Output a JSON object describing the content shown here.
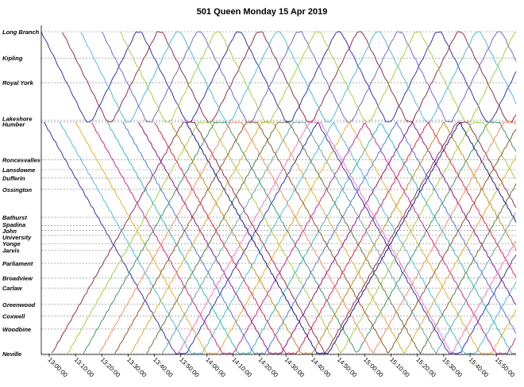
{
  "chart_data": {
    "type": "line",
    "title": "501 Queen Monday 15 Apr 2019",
    "xlabel": "",
    "ylabel": "",
    "x_ticks": [
      "13:00:00",
      "13:10:00",
      "13:20:00",
      "13:30:00",
      "13:40:00",
      "13:50:00",
      "14:00:00",
      "14:10:00",
      "14:20:00",
      "14:30:00",
      "14:40:00",
      "14:50:00",
      "15:00:00",
      "15:10:00",
      "15:20:00",
      "15:30:00",
      "15:40:00",
      "15:50:00"
    ],
    "xlim": [
      "12:57:00",
      "15:57:30"
    ],
    "y_stops": [
      "Long Branch",
      "Kipling",
      "Royal York",
      "Lakeshore",
      "Humber",
      "Roncesvalles",
      "Lansdowne",
      "Dufferin",
      "Ossington",
      "Bathurst",
      "Spadina",
      "John",
      "University",
      "Yonge",
      "Jarvis",
      "Parliament",
      "Broadview",
      "Carlaw",
      "Greenwood",
      "Coxwell",
      "Woodbine",
      "Neville"
    ],
    "y_stop_km": [
      0.0,
      1.6,
      3.1,
      5.4,
      5.5,
      7.8,
      8.4,
      8.9,
      9.6,
      11.3,
      11.8,
      12.1,
      12.4,
      12.9,
      13.3,
      14.1,
      15.0,
      15.6,
      16.6,
      17.3,
      18.1,
      19.6
    ],
    "grid": true,
    "legend": "none",
    "colors": [
      "#1f1fb4",
      "#8b1a3a",
      "#3ab7d9",
      "#9acd32",
      "#e6a817",
      "#2e8b57",
      "#c71585",
      "#6a5acd",
      "#ff7f50",
      "#20b2aa",
      "#8b4513",
      "#4169e1",
      "#daa520",
      "#800080",
      "#556b2f",
      "#dc143c",
      "#5f9ea0",
      "#b8860b",
      "#ff69b4",
      "#00008b"
    ],
    "series": [
      {
        "name": "",
        "colorIndex": 0,
        "outer": true,
        "start": "12:57:00",
        "dir": 1
      },
      {
        "name": "",
        "colorIndex": 1,
        "outer": true,
        "start": "13:05:00",
        "dir": 1
      },
      {
        "name": "",
        "colorIndex": 2,
        "outer": true,
        "start": "13:12:00",
        "dir": 1
      },
      {
        "name": "",
        "colorIndex": 7,
        "outer": true,
        "start": "13:20:00",
        "dir": 1
      },
      {
        "name": "",
        "colorIndex": 3,
        "outer": true,
        "start": "13:27:00",
        "dir": 1
      },
      {
        "name": "",
        "colorIndex": 0,
        "outer": false,
        "start": "12:58:00",
        "dir": 1
      },
      {
        "name": "",
        "colorIndex": 1,
        "outer": false,
        "start": "13:01:00",
        "dir": -1
      },
      {
        "name": "",
        "colorIndex": 2,
        "outer": false,
        "start": "13:04:00",
        "dir": 1
      },
      {
        "name": "",
        "colorIndex": 3,
        "outer": false,
        "start": "13:07:00",
        "dir": -1
      },
      {
        "name": "",
        "colorIndex": 4,
        "outer": false,
        "start": "13:10:00",
        "dir": 1
      },
      {
        "name": "",
        "colorIndex": 5,
        "outer": false,
        "start": "13:13:00",
        "dir": -1
      },
      {
        "name": "",
        "colorIndex": 6,
        "outer": false,
        "start": "13:16:00",
        "dir": 1
      },
      {
        "name": "",
        "colorIndex": 8,
        "outer": false,
        "start": "13:19:00",
        "dir": -1
      },
      {
        "name": "",
        "colorIndex": 9,
        "outer": false,
        "start": "13:22:00",
        "dir": 1
      },
      {
        "name": "",
        "colorIndex": 10,
        "outer": false,
        "start": "13:25:00",
        "dir": -1
      },
      {
        "name": "",
        "colorIndex": 11,
        "outer": false,
        "start": "13:28:00",
        "dir": 1
      },
      {
        "name": "",
        "colorIndex": 12,
        "outer": false,
        "start": "13:31:00",
        "dir": -1
      },
      {
        "name": "",
        "colorIndex": 13,
        "outer": false,
        "start": "13:34:00",
        "dir": 1
      },
      {
        "name": "",
        "colorIndex": 14,
        "outer": false,
        "start": "13:37:00",
        "dir": -1
      },
      {
        "name": "",
        "colorIndex": 15,
        "outer": false,
        "start": "13:40:00",
        "dir": 1
      },
      {
        "name": "",
        "colorIndex": 16,
        "outer": false,
        "start": "13:43:00",
        "dir": -1
      },
      {
        "name": "",
        "colorIndex": 17,
        "outer": false,
        "start": "13:46:00",
        "dir": 1
      },
      {
        "name": "",
        "colorIndex": 18,
        "outer": false,
        "start": "13:49:00",
        "dir": -1
      },
      {
        "name": "",
        "colorIndex": 19,
        "outer": false,
        "start": "13:52:00",
        "dir": 1
      }
    ]
  }
}
